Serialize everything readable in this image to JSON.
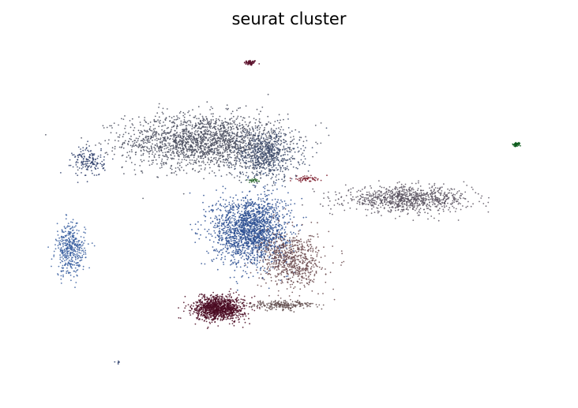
{
  "chart_data": {
    "type": "scatter",
    "title": "seurat cluster",
    "xlabel": "",
    "ylabel": "",
    "axes_visible": false,
    "grid": false,
    "legend": "none",
    "xlim": [
      0,
      100
    ],
    "ylim": [
      0,
      100
    ],
    "point_style": "tiny dots, black edge",
    "clusters": [
      {
        "id": "top-small",
        "color": "#5a0f2a",
        "centroid": [
          42.0,
          95.0
        ],
        "spread": [
          0.6,
          0.4
        ],
        "points": 60
      },
      {
        "id": "upper-main",
        "color": "#4a4e5e",
        "centroid": [
          33.0,
          72.0
        ],
        "spread": [
          7.5,
          4.0
        ],
        "points": 1900
      },
      {
        "id": "upper-right-lobe",
        "color": "#3c4a6a",
        "centroid": [
          45.0,
          68.0
        ],
        "spread": [
          3.2,
          3.6
        ],
        "points": 700
      },
      {
        "id": "right-main",
        "color": "#5b5460",
        "centroid": [
          72.0,
          55.0
        ],
        "spread": [
          6.0,
          1.8
        ],
        "points": 900
      },
      {
        "id": "left-small-upper",
        "color": "#2e3e6b",
        "centroid": [
          11.0,
          66.0
        ],
        "spread": [
          1.5,
          2.2
        ],
        "points": 160
      },
      {
        "id": "left-lower",
        "color": "#3a5fa0",
        "centroid": [
          7.5,
          40.0
        ],
        "spread": [
          1.4,
          3.8
        ],
        "points": 420
      },
      {
        "id": "center-blue",
        "color": "#2c4f92",
        "centroid": [
          42.0,
          46.0
        ],
        "spread": [
          3.6,
          5.0
        ],
        "points": 1800
      },
      {
        "id": "center-right-brown",
        "color": "#6b4a4e",
        "centroid": [
          50.0,
          37.0
        ],
        "spread": [
          3.0,
          4.0
        ],
        "points": 700
      },
      {
        "id": "lower-dark-red",
        "color": "#4a0a22",
        "centroid": [
          36.0,
          23.0
        ],
        "spread": [
          2.4,
          1.8
        ],
        "points": 1100
      },
      {
        "id": "lower-strip",
        "color": "#5e4a4a",
        "centroid": [
          48.0,
          24.0
        ],
        "spread": [
          3.0,
          0.7
        ],
        "points": 200
      },
      {
        "id": "right-tiny-green",
        "color": "#0a5a1a",
        "centroid": [
          93.0,
          71.0
        ],
        "spread": [
          0.4,
          0.3
        ],
        "points": 40
      },
      {
        "id": "center-tiny-green",
        "color": "#2a6a2a",
        "centroid": [
          42.5,
          60.5
        ],
        "spread": [
          0.6,
          0.3
        ],
        "points": 25
      },
      {
        "id": "center-tiny-red",
        "color": "#7a1a2a",
        "centroid": [
          52.5,
          61.0
        ],
        "spread": [
          1.5,
          0.4
        ],
        "points": 55
      },
      {
        "id": "bottom-tiny",
        "color": "#2c3e6b",
        "centroid": [
          16.5,
          7.0
        ],
        "spread": [
          0.2,
          0.2
        ],
        "points": 6
      }
    ]
  }
}
